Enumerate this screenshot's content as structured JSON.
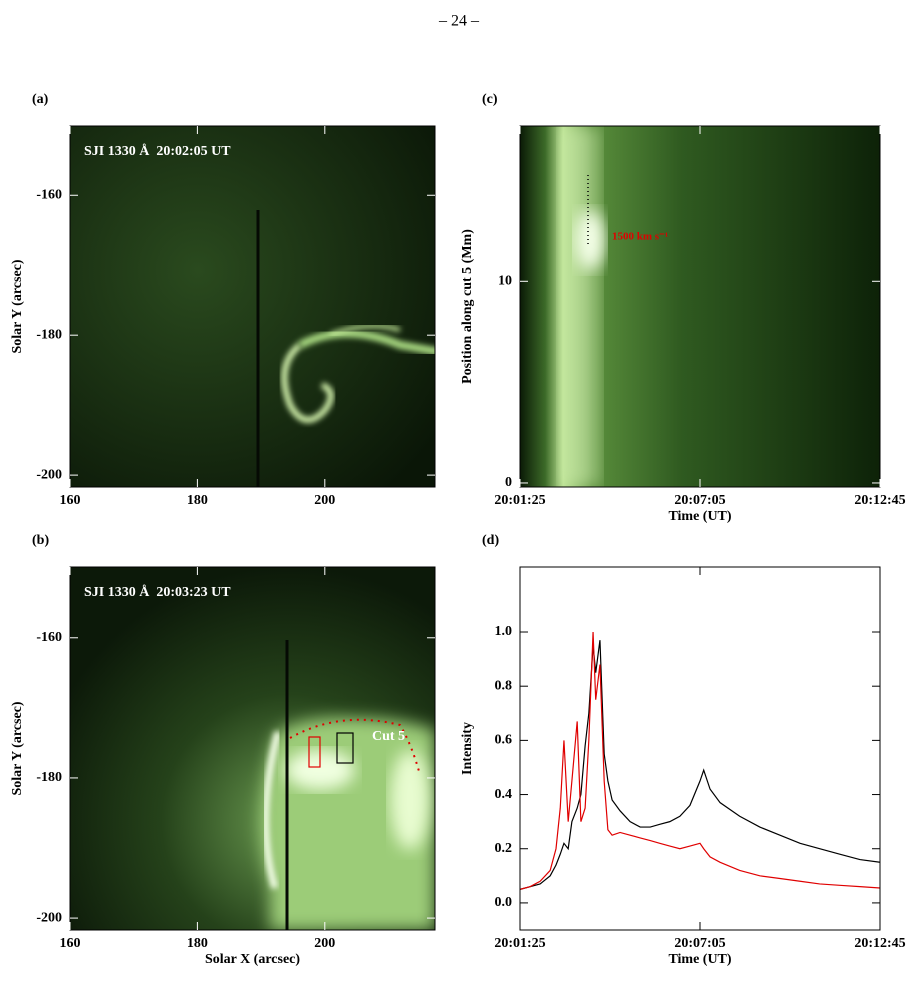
{
  "page_number": "– 24 –",
  "chart_data": [
    {
      "type": "image",
      "label": "(a)",
      "title": "SJI 1330 Å  20:02:05 UT",
      "ylabel": "Solar Y (arcsec)",
      "xlim": [
        160,
        217.3
      ],
      "ylim": [
        -201.7,
        -150.1
      ],
      "xticks": [
        160,
        180,
        200
      ],
      "yticks": [
        -160,
        -180,
        -200
      ]
    },
    {
      "type": "image",
      "label": "(b)",
      "title": "SJI 1330 Å  20:03:23 UT",
      "xlabel": "Solar X (arcsec)",
      "ylabel": "Solar Y (arcsec)",
      "annotation": "Cut 5",
      "xlim": [
        160,
        217.3
      ],
      "ylim": [
        -201.7,
        -149.9
      ],
      "xticks": [
        160,
        180,
        200
      ],
      "yticks": [
        -160,
        -180,
        -200
      ]
    },
    {
      "type": "image",
      "label": "(c)",
      "xlabel": "Time (UT)",
      "ylabel": "Position along cut 5 (Mm)",
      "annotation": "1500 km s⁻¹",
      "xlim": [
        72085,
        72765
      ],
      "ylim": [
        -0.2,
        17.7
      ],
      "xticks": [
        {
          "value": 72085,
          "label": "20:01:25"
        },
        {
          "value": 72425,
          "label": "20:07:05"
        },
        {
          "value": 72765,
          "label": "20:12:45"
        }
      ],
      "yticks": [
        0,
        10
      ]
    },
    {
      "type": "line",
      "label": "(d)",
      "xlabel": "Time (UT)",
      "ylabel": "Intensity",
      "x": [
        72085,
        72104,
        72123,
        72142,
        72153,
        72161,
        72168,
        72176,
        72183,
        72193,
        72200,
        72208,
        72215,
        72223,
        72228,
        72236,
        72244,
        72251,
        72259,
        72274,
        72293,
        72312,
        72331,
        72349,
        72368,
        72387,
        72406,
        72425,
        72432,
        72444,
        72463,
        72500,
        72538,
        72576,
        72614,
        72651,
        72689,
        72727,
        72765
      ],
      "series": [
        {
          "color": "#000000",
          "values": [
            0.05,
            0.06,
            0.07,
            0.1,
            0.14,
            0.18,
            0.22,
            0.2,
            0.3,
            0.35,
            0.4,
            0.58,
            0.7,
            0.95,
            0.85,
            0.97,
            0.55,
            0.45,
            0.38,
            0.34,
            0.3,
            0.28,
            0.28,
            0.29,
            0.3,
            0.32,
            0.36,
            0.45,
            0.49,
            0.42,
            0.37,
            0.32,
            0.28,
            0.25,
            0.22,
            0.2,
            0.18,
            0.16,
            0.15
          ]
        },
        {
          "color": "#e00000",
          "values": [
            0.05,
            0.06,
            0.08,
            0.12,
            0.2,
            0.35,
            0.6,
            0.3,
            0.45,
            0.67,
            0.3,
            0.35,
            0.6,
            1.0,
            0.75,
            0.88,
            0.45,
            0.27,
            0.25,
            0.26,
            0.25,
            0.24,
            0.23,
            0.22,
            0.21,
            0.2,
            0.21,
            0.22,
            0.2,
            0.17,
            0.15,
            0.12,
            0.1,
            0.09,
            0.08,
            0.07,
            0.065,
            0.06,
            0.055
          ]
        }
      ],
      "xlim": [
        72085,
        72765
      ],
      "ylim": [
        -0.1,
        1.24
      ],
      "xticks": [
        {
          "value": 72085,
          "label": "20:01:25"
        },
        {
          "value": 72425,
          "label": "20:07:05"
        },
        {
          "value": 72765,
          "label": "20:12:45"
        }
      ],
      "yticks": [
        {
          "value": 0,
          "label": "0.0"
        },
        0.2,
        0.4,
        0.6,
        0.8,
        {
          "value": 1,
          "label": "1.0"
        }
      ]
    }
  ]
}
